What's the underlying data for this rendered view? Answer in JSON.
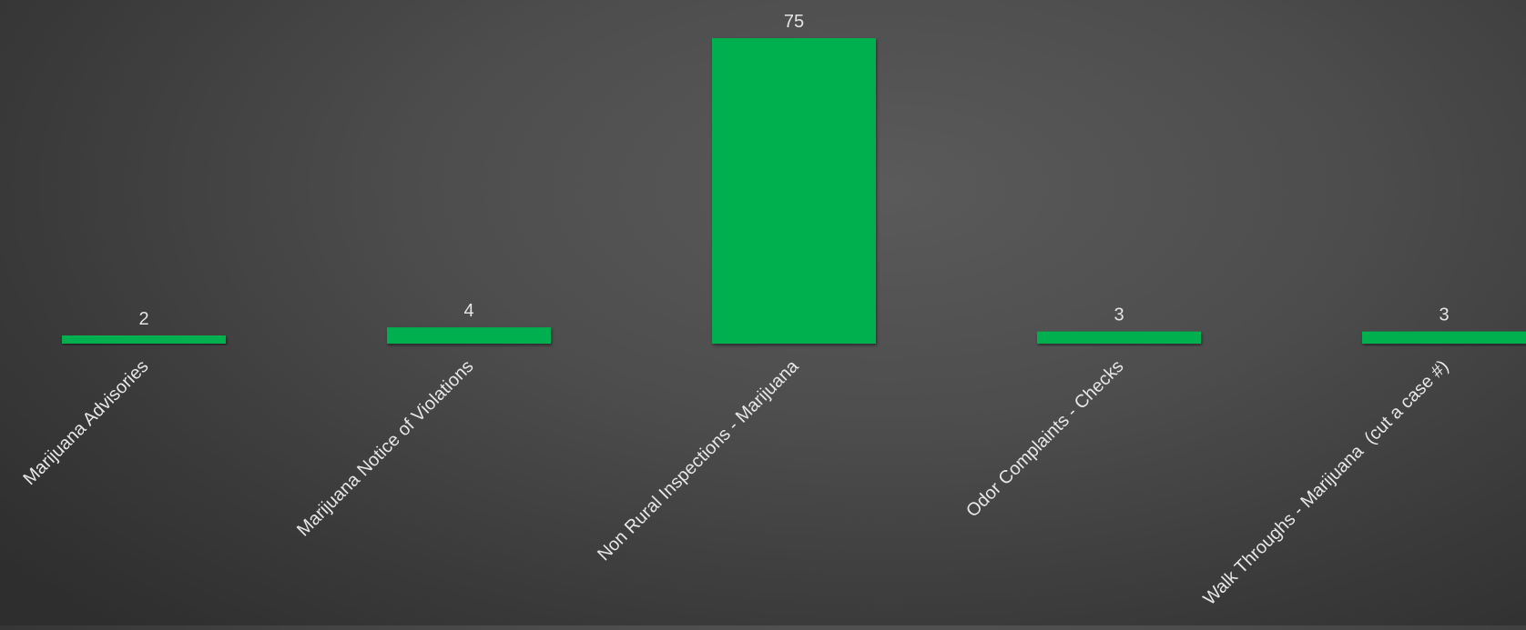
{
  "chart_data": {
    "type": "bar",
    "title": "",
    "xlabel": "",
    "ylabel": "",
    "categories": [
      "Marijuana Advisories",
      "Marijuana Notice of Violations",
      "Non Rural Inspections - Marijuana",
      "Odor Complaints - Checks",
      "Walk Throughs - Marijuana  (cut a case #)"
    ],
    "values": [
      2,
      4,
      75,
      3,
      3
    ],
    "data_labels": [
      "2",
      "4",
      "75",
      "3",
      "3"
    ],
    "ylim": [
      0,
      75
    ],
    "grid": false,
    "legend": "none",
    "colors": {
      "bar": "#00b050",
      "text": "#e6e6e6"
    }
  }
}
